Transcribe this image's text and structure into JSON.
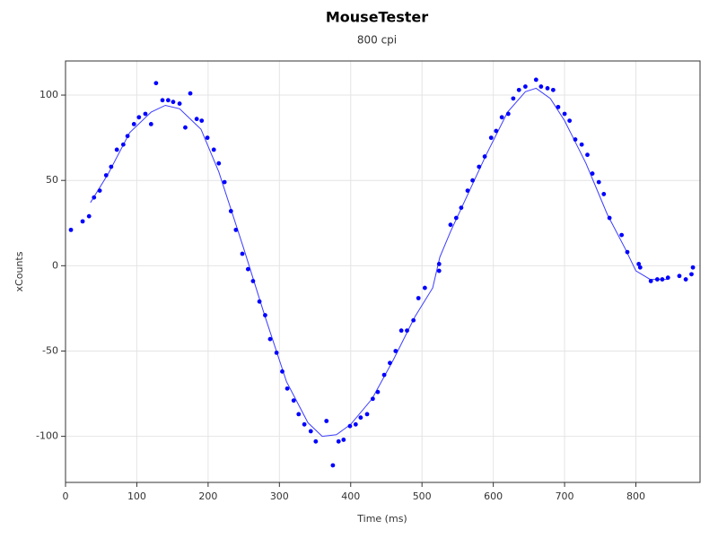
{
  "chart_data": {
    "type": "scatter",
    "title": "MouseTester",
    "subtitle": "800 cpi",
    "x_label": "Time (ms)",
    "y_label": "xCounts",
    "xlim": [
      0,
      890
    ],
    "ylim": [
      -127,
      120
    ],
    "xticks": [
      0,
      100,
      200,
      300,
      400,
      500,
      600,
      700,
      800
    ],
    "yticks": [
      -100,
      -50,
      0,
      50,
      100
    ],
    "grid": true,
    "color": "#0000ff",
    "x": [
      7.6,
      24,
      33,
      40,
      48,
      57,
      64,
      72,
      81,
      87,
      96,
      103,
      112,
      120,
      127,
      136,
      144,
      151,
      160,
      168,
      175,
      184,
      191,
      199,
      208,
      215,
      223,
      232,
      239,
      248,
      256,
      263,
      272,
      280,
      287,
      296,
      304,
      311,
      320,
      327,
      335,
      344,
      351,
      366,
      375,
      383,
      390,
      399,
      407,
      414,
      423,
      431,
      438,
      447,
      455,
      463,
      471,
      479,
      488,
      495,
      504,
      524,
      524,
      540,
      548,
      555,
      564,
      571,
      580,
      588,
      597,
      604,
      612,
      621,
      628,
      636,
      645,
      660,
      667,
      676,
      684,
      691,
      700,
      707,
      715,
      724,
      732,
      739,
      748,
      755,
      763,
      780,
      788,
      804,
      806,
      821,
      830,
      837,
      845,
      861,
      870,
      878,
      880
    ],
    "values": [
      21,
      26,
      29,
      40,
      44,
      53,
      58,
      68,
      71,
      76,
      83,
      87,
      89,
      83,
      107,
      97,
      97,
      96,
      95,
      81,
      101,
      86,
      85,
      75,
      68,
      60,
      49,
      32,
      21,
      7,
      -2,
      -9,
      -21,
      -29,
      -43,
      -51,
      -62,
      -72,
      -79,
      -87,
      -93,
      -97,
      -103,
      -91,
      -117,
      -103,
      -102,
      -94,
      -93,
      -89,
      -87,
      -78,
      -74,
      -64,
      -57,
      -50,
      -38,
      -38,
      -32,
      -19,
      -13,
      -3,
      1,
      24,
      28,
      34,
      44,
      50,
      58,
      64,
      75,
      79,
      87,
      89,
      98,
      103,
      105,
      109,
      105,
      104,
      103,
      93,
      89,
      85,
      74,
      71,
      65,
      54,
      49,
      42,
      28,
      18,
      8,
      1,
      -1,
      -9,
      -8,
      -8,
      -7,
      -6,
      -8,
      -5,
      -1
    ],
    "line": {
      "color": "#3b3bff",
      "x": [
        35,
        60,
        90,
        120,
        140,
        160,
        190,
        215,
        250,
        280,
        310,
        340,
        360,
        380,
        400,
        430,
        460,
        490,
        515,
        525,
        540,
        560,
        590,
        620,
        645,
        660,
        680,
        700,
        730,
        760,
        785,
        800,
        820,
        845
      ],
      "values": [
        37,
        54,
        78,
        90,
        94,
        92,
        80,
        55,
        10,
        -30,
        -68,
        -92,
        -100,
        -99,
        -93,
        -78,
        -55,
        -30,
        -13,
        5,
        20,
        38,
        65,
        90,
        102,
        104,
        98,
        85,
        60,
        30,
        10,
        -3,
        -8,
        -8
      ]
    }
  }
}
